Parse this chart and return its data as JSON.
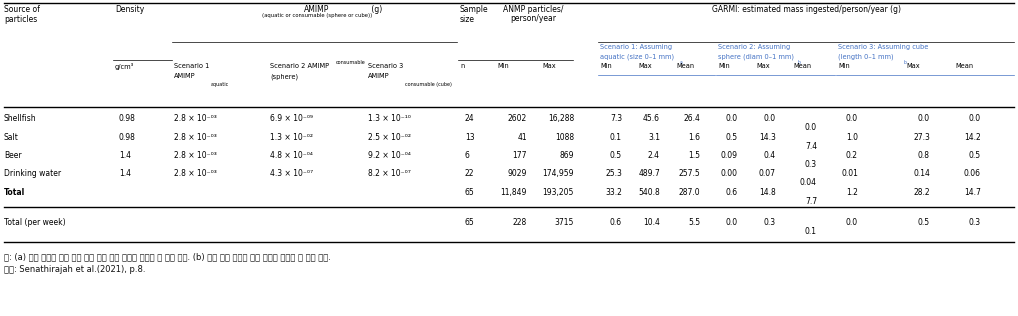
{
  "blue": "#4472C4",
  "footnote1": "주: (a) 문헌 검토를 통해 얻은 수계 입자 크기 자료를 토대로 한 입자 크기. (b) 소비 식품 유형별 입자 분포를 토대로 한 입자 크기.",
  "footnote2": "자료: Senathirajah et al.(2021), p.8.",
  "rows": [
    {
      "source": "Shellfish",
      "density": "0.98",
      "s1": "2.8 × 10⁻⁰³",
      "s2": "6.9 × 10⁻⁰⁹",
      "s3": "1.3 × 10⁻¹⁰",
      "n": "24",
      "pmin": "2602",
      "pmax": "16,288",
      "g1min": "7.3",
      "g1max": "45.6",
      "g1mean": "26.4",
      "g2min": "0.0",
      "g2max": "0.0",
      "g2mean": "0.0",
      "g3min": "0.0",
      "g3max": "0.0",
      "g3mean": "0.0"
    },
    {
      "source": "Salt",
      "density": "0.98",
      "s1": "2.8 × 10⁻⁰³",
      "s2": "1.3 × 10⁻⁰²",
      "s3": "2.5 × 10⁻⁰²",
      "n": "13",
      "pmin": "41",
      "pmax": "1088",
      "g1min": "0.1",
      "g1max": "3.1",
      "g1mean": "1.6",
      "g2min": "0.5",
      "g2max": "14.3",
      "g2mean": "7.4",
      "g3min": "1.0",
      "g3max": "27.3",
      "g3mean": "14.2"
    },
    {
      "source": "Beer",
      "density": "1.4",
      "s1": "2.8 × 10⁻⁰³",
      "s2": "4.8 × 10⁻⁰⁴",
      "s3": "9.2 × 10⁻⁰⁴",
      "n": "6",
      "pmin": "177",
      "pmax": "869",
      "g1min": "0.5",
      "g1max": "2.4",
      "g1mean": "1.5",
      "g2min": "0.09",
      "g2max": "0.4",
      "g2mean": "0.3",
      "g3min": "0.2",
      "g3max": "0.8",
      "g3mean": "0.5"
    },
    {
      "source": "Drinking water",
      "density": "1.4",
      "s1": "2.8 × 10⁻⁰³",
      "s2": "4.3 × 10⁻⁰⁷",
      "s3": "8.2 × 10⁻⁰⁷",
      "n": "22",
      "pmin": "9029",
      "pmax": "174,959",
      "g1min": "25.3",
      "g1max": "489.7",
      "g1mean": "257.5",
      "g2min": "0.00",
      "g2max": "0.07",
      "g2mean": "0.04",
      "g3min": "0.01",
      "g3max": "0.14",
      "g3mean": "0.06"
    },
    {
      "source": "Total",
      "density": "",
      "s1": "",
      "s2": "",
      "s3": "",
      "n": "65",
      "pmin": "11,849",
      "pmax": "193,205",
      "g1min": "33.2",
      "g1max": "540.8",
      "g1mean": "287.0",
      "g2min": "0.6",
      "g2max": "14.8",
      "g2mean": "7.7",
      "g3min": "1.2",
      "g3max": "28.2",
      "g3mean": "14.7"
    }
  ],
  "week_row": {
    "source": "Total (per week)",
    "density": "",
    "s1": "",
    "s2": "",
    "s3": "",
    "n": "65",
    "pmin": "228",
    "pmax": "3715",
    "g1min": "0.6",
    "g1max": "10.4",
    "g1mean": "5.5",
    "g2min": "0.0",
    "g2max": "0.3",
    "g2mean": "0.1",
    "g3min": "0.0",
    "g3max": "0.5",
    "g3mean": "0.3"
  }
}
